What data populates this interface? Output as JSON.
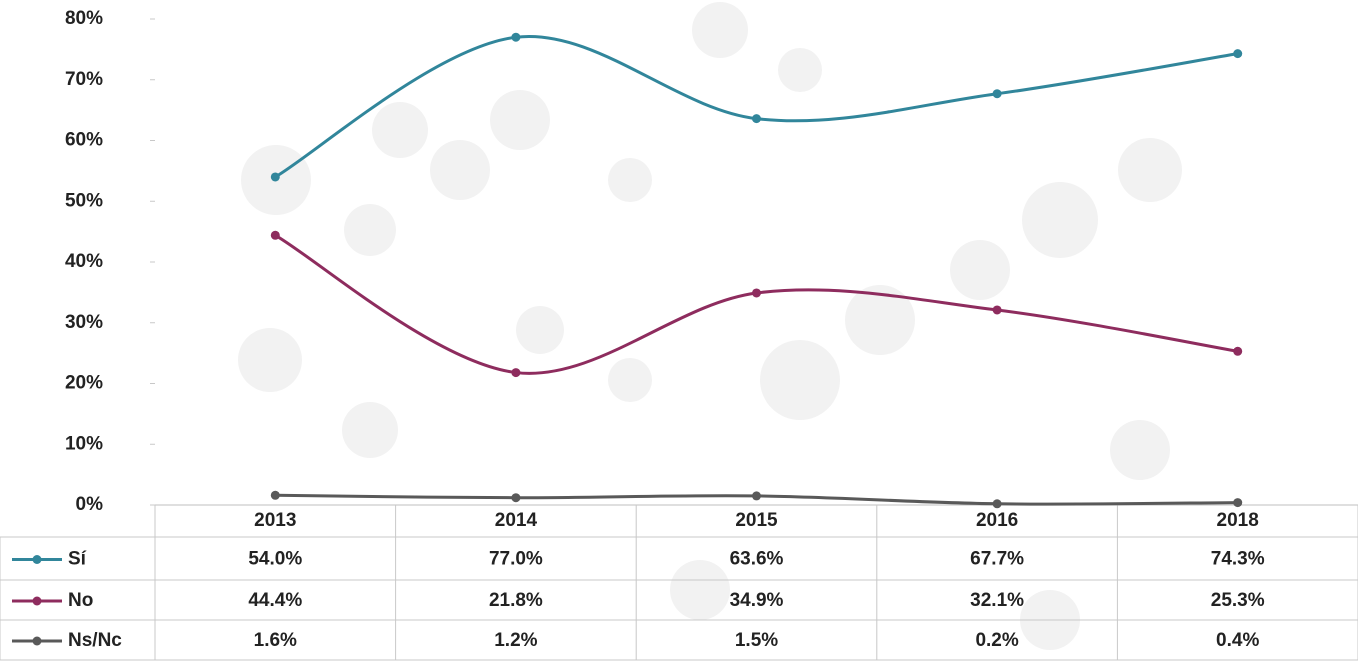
{
  "chart_data": {
    "type": "line",
    "categories": [
      "2013",
      "2014",
      "2015",
      "2016",
      "2018"
    ],
    "series": [
      {
        "name": "Sí",
        "color": "#31869b",
        "values": [
          54.0,
          77.0,
          63.6,
          67.7,
          74.3
        ],
        "value_labels": [
          "54.0%",
          "77.0%",
          "63.6%",
          "67.7%",
          "74.3%"
        ]
      },
      {
        "name": "No",
        "color": "#8e2c5e",
        "values": [
          44.4,
          21.8,
          34.9,
          32.1,
          25.3
        ],
        "value_labels": [
          "44.4%",
          "21.8%",
          "34.9%",
          "32.1%",
          "25.3%"
        ]
      },
      {
        "name": "Ns/Nc",
        "color": "#595959",
        "values": [
          1.6,
          1.2,
          1.5,
          0.2,
          0.4
        ],
        "value_labels": [
          "1.6%",
          "1.2%",
          "1.5%",
          "0.2%",
          "0.4%"
        ]
      }
    ],
    "ylim": [
      0,
      80
    ],
    "yticks": [
      {
        "value": 0,
        "label": "0%"
      },
      {
        "value": 10,
        "label": "10%"
      },
      {
        "value": 20,
        "label": "20%"
      },
      {
        "value": 30,
        "label": "30%"
      },
      {
        "value": 40,
        "label": "40%"
      },
      {
        "value": 50,
        "label": "50%"
      },
      {
        "value": 60,
        "label": "60%"
      },
      {
        "value": 70,
        "label": "70%"
      },
      {
        "value": 80,
        "label": "80%"
      }
    ],
    "smooth": true
  }
}
